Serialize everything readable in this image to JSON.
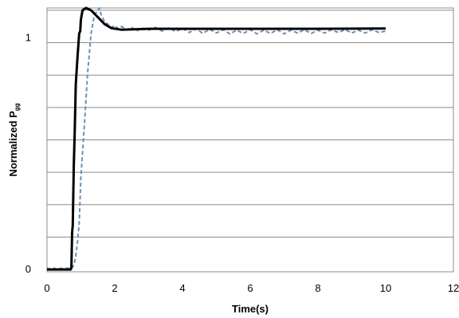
{
  "chart_data": {
    "type": "line",
    "title": "",
    "xlabel": "Time(s)",
    "ylabel_main": "Normalized P",
    "ylabel_sub": "gg",
    "xlim": [
      0,
      12
    ],
    "ylim": [
      -0.01,
      1.13
    ],
    "x_ticks": [
      0,
      2,
      4,
      6,
      8,
      10,
      12
    ],
    "y_ticks": [
      {
        "value": 0,
        "label": "0"
      },
      {
        "value": 1,
        "label": "1"
      }
    ],
    "gridlines_y": [
      0.14,
      0.28,
      0.42,
      0.56,
      0.7,
      0.84,
      0.98,
      1.12
    ],
    "grid": "horizontal",
    "legend": "none",
    "series": [
      {
        "color": "#000000",
        "style": "solid",
        "points": [
          [
            0,
            0.0
          ],
          [
            0.7,
            0.0
          ],
          [
            0.72,
            0.01
          ],
          [
            0.74,
            0.16
          ],
          [
            0.76,
            0.19
          ],
          [
            0.79,
            0.45
          ],
          [
            0.82,
            0.6
          ],
          [
            0.85,
            0.8
          ],
          [
            0.9,
            0.92
          ],
          [
            0.95,
            1.02
          ],
          [
            0.98,
            1.03
          ],
          [
            1.0,
            1.08
          ],
          [
            1.05,
            1.12
          ],
          [
            1.15,
            1.13
          ],
          [
            1.3,
            1.12
          ],
          [
            1.5,
            1.09
          ],
          [
            1.7,
            1.06
          ],
          [
            1.9,
            1.043
          ],
          [
            2.2,
            1.036
          ],
          [
            2.6,
            1.038
          ],
          [
            3.0,
            1.04
          ],
          [
            4.0,
            1.04
          ],
          [
            6.0,
            1.04
          ],
          [
            8.0,
            1.04
          ],
          [
            10.0,
            1.041
          ]
        ]
      },
      {
        "color": "#6f8fb2",
        "style": "dashed",
        "points": [
          [
            0,
            0.005
          ],
          [
            0.1,
            0.002
          ],
          [
            0.2,
            0.006
          ],
          [
            0.3,
            0.001
          ],
          [
            0.4,
            0.005
          ],
          [
            0.5,
            0.002
          ],
          [
            0.6,
            0.006
          ],
          [
            0.72,
            0.003
          ],
          [
            0.8,
            0.02
          ],
          [
            0.85,
            0.06
          ],
          [
            0.9,
            0.12
          ],
          [
            0.95,
            0.2
          ],
          [
            1.0,
            0.4
          ],
          [
            1.1,
            0.62
          ],
          [
            1.2,
            0.85
          ],
          [
            1.3,
            1.02
          ],
          [
            1.4,
            1.1
          ],
          [
            1.5,
            1.12
          ],
          [
            1.55,
            1.13
          ],
          [
            1.6,
            1.1
          ],
          [
            1.7,
            1.07
          ],
          [
            1.8,
            1.06
          ],
          [
            1.9,
            1.045
          ],
          [
            2.0,
            1.055
          ],
          [
            2.1,
            1.04
          ],
          [
            2.2,
            1.05
          ],
          [
            2.35,
            1.036
          ],
          [
            2.5,
            1.046
          ],
          [
            2.65,
            1.03
          ],
          [
            2.8,
            1.044
          ],
          [
            3.0,
            1.034
          ],
          [
            3.2,
            1.046
          ],
          [
            3.4,
            1.03
          ],
          [
            3.6,
            1.044
          ],
          [
            3.8,
            1.028
          ],
          [
            4.0,
            1.042
          ],
          [
            4.2,
            1.024
          ],
          [
            4.4,
            1.04
          ],
          [
            4.6,
            1.02
          ],
          [
            4.8,
            1.038
          ],
          [
            5.0,
            1.022
          ],
          [
            5.2,
            1.036
          ],
          [
            5.4,
            1.018
          ],
          [
            5.6,
            1.034
          ],
          [
            5.8,
            1.02
          ],
          [
            6.0,
            1.036
          ],
          [
            6.2,
            1.018
          ],
          [
            6.4,
            1.034
          ],
          [
            6.6,
            1.02
          ],
          [
            6.8,
            1.036
          ],
          [
            7.0,
            1.018
          ],
          [
            7.2,
            1.034
          ],
          [
            7.4,
            1.022
          ],
          [
            7.6,
            1.036
          ],
          [
            7.8,
            1.02
          ],
          [
            8.0,
            1.034
          ],
          [
            8.2,
            1.022
          ],
          [
            8.4,
            1.036
          ],
          [
            8.6,
            1.024
          ],
          [
            8.8,
            1.036
          ],
          [
            9.0,
            1.022
          ],
          [
            9.2,
            1.034
          ],
          [
            9.4,
            1.022
          ],
          [
            9.6,
            1.036
          ],
          [
            9.8,
            1.024
          ],
          [
            10.0,
            1.03
          ]
        ]
      }
    ]
  }
}
